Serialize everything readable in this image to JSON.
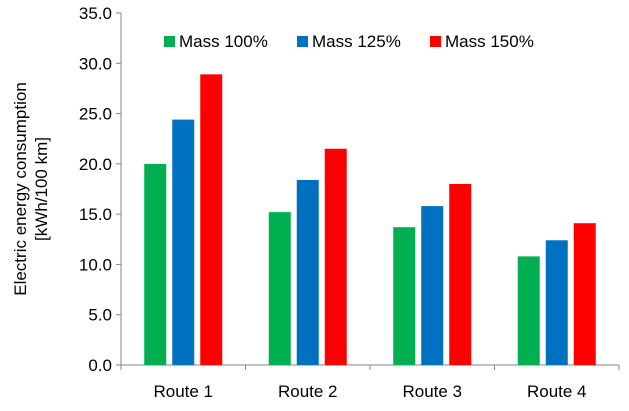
{
  "chart_data": {
    "type": "bar",
    "categories": [
      "Route 1",
      "Route 2",
      "Route 3",
      "Route 4"
    ],
    "series": [
      {
        "name": "Mass 100%",
        "color": "#00b050",
        "values": [
          20.0,
          15.2,
          13.7,
          10.8
        ]
      },
      {
        "name": "Mass 125%",
        "color": "#0070c0",
        "values": [
          24.4,
          18.4,
          15.8,
          12.4
        ]
      },
      {
        "name": "Mass 150%",
        "color": "#ff0000",
        "values": [
          28.9,
          21.5,
          18.0,
          14.1
        ]
      }
    ],
    "ylabel_line1": "Electric energy consumption",
    "ylabel_line2": "[kWh/100 km]",
    "ylim": [
      0,
      35
    ],
    "yticks": [
      "0.0",
      "5.0",
      "10.0",
      "15.0",
      "20.0",
      "25.0",
      "30.0",
      "35.0"
    ],
    "grid": false,
    "legend_position": "top-center"
  }
}
